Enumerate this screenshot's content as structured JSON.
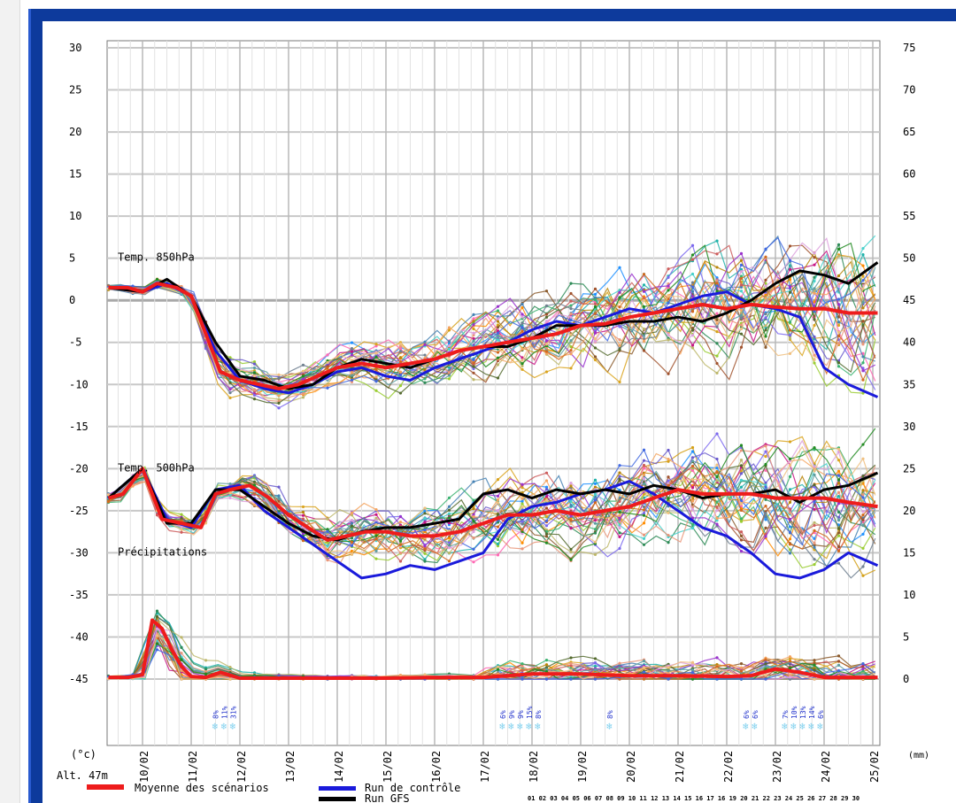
{
  "labels": {
    "temp850": "Temp. 850hPa",
    "temp500": "Temp. 500hPa",
    "precip": "Précipitations",
    "unit_left": "(°c)",
    "unit_right": "(mm)",
    "altitude": "Alt. 47m"
  },
  "legend": {
    "mean": "Moyenne des scénarios",
    "control": "Run de contrôle",
    "gfs": "Run GFS",
    "days_strip": "01 02 03 04 05 06 07 08 09 10 11 12 13 14 15 16 17 16 19 20 21 22 23 24 25 26 27 28 29 30"
  },
  "colors": {
    "mean": "#ee1c1c",
    "control": "#1a1adb",
    "gfs": "#000000",
    "frame": "#0d3a9c",
    "snow": "#7fd0ee"
  },
  "snow_markers": [
    {
      "day": 11.5,
      "pcts": [
        "8%",
        "11%",
        "31%"
      ]
    },
    {
      "day": 17.4,
      "pcts": [
        "6%",
        "9%",
        "9%",
        "15%",
        "8%"
      ]
    },
    {
      "day": 19.6,
      "pcts": [
        "8%"
      ]
    },
    {
      "day": 22.4,
      "pcts": [
        "6%",
        "6%"
      ]
    },
    {
      "day": 23.2,
      "pcts": [
        "7%",
        "10%",
        "13%",
        "14%",
        "6%"
      ]
    }
  ],
  "chart_data": {
    "type": "line",
    "xlabel": "",
    "x_ticks": [
      "10/02",
      "11/02",
      "12/02",
      "13/02",
      "14/02",
      "15/02",
      "16/02",
      "17/02",
      "18/02",
      "19/02",
      "20/02",
      "21/02",
      "22/02",
      "23/02",
      "24/02",
      "25/02"
    ],
    "xlim": [
      9.3,
      25.15
    ],
    "y_left": {
      "label": "(°c)",
      "lim": [
        -45,
        30
      ],
      "ticks": [
        30,
        25,
        20,
        15,
        10,
        5,
        0,
        -5,
        -10,
        -15,
        -20,
        -25,
        -30,
        -35,
        -40,
        -45
      ]
    },
    "y_right": {
      "label": "(mm)",
      "lim": [
        0,
        75
      ],
      "ticks": [
        75,
        70,
        65,
        60,
        55,
        50,
        45,
        40,
        35,
        30,
        25,
        20,
        15,
        10,
        5,
        0
      ]
    },
    "grid": true,
    "series": [
      {
        "name": "Moyenne des scénarios",
        "axis": "left",
        "group": "temp850",
        "x": [
          9.3,
          9.7,
          10.0,
          10.3,
          10.7,
          11.0,
          11.3,
          11.6,
          12.0,
          12.4,
          12.8,
          13.2,
          13.6,
          14.0,
          14.5,
          15.0,
          15.5,
          16.0,
          16.5,
          17.0,
          17.5,
          18.0,
          18.5,
          19.0,
          19.5,
          20.0,
          20.5,
          21.0,
          21.5,
          22.0,
          22.5,
          23.0,
          23.5,
          24.0,
          24.5,
          25.1
        ],
        "y": [
          1.5,
          1.5,
          1.0,
          2.0,
          1.5,
          0.5,
          -4.0,
          -8.5,
          -9.5,
          -10.0,
          -10.5,
          -10.0,
          -9.0,
          -8.0,
          -7.5,
          -8.0,
          -7.5,
          -7.0,
          -6.0,
          -5.5,
          -5.0,
          -4.5,
          -4.0,
          -3.0,
          -2.8,
          -2.0,
          -1.5,
          -1.0,
          -0.5,
          -1.0,
          -0.5,
          -0.8,
          -1.0,
          -1.0,
          -1.5,
          -1.5
        ]
      },
      {
        "name": "Moyenne des scénarios",
        "axis": "left",
        "group": "temp500",
        "x": [
          9.3,
          9.6,
          10.0,
          10.4,
          10.8,
          11.2,
          11.5,
          11.8,
          12.2,
          12.6,
          13.0,
          13.4,
          13.8,
          14.2,
          14.6,
          15.0,
          15.5,
          16.0,
          16.5,
          17.0,
          17.5,
          18.0,
          18.5,
          19.0,
          19.5,
          20.0,
          20.5,
          21.0,
          21.5,
          22.0,
          22.5,
          23.0,
          23.5,
          24.0,
          24.5,
          25.1
        ],
        "y": [
          -23.5,
          -23.0,
          -20.0,
          -26.0,
          -26.5,
          -27.0,
          -23.0,
          -22.5,
          -22.0,
          -23.5,
          -25.5,
          -27.0,
          -28.5,
          -28.0,
          -27.5,
          -27.5,
          -28.0,
          -28.0,
          -27.5,
          -26.5,
          -25.5,
          -25.5,
          -25.0,
          -25.5,
          -25.0,
          -24.5,
          -23.5,
          -22.5,
          -23.0,
          -23.0,
          -23.0,
          -23.5,
          -23.5,
          -23.5,
          -24.0,
          -24.5
        ]
      },
      {
        "name": "Moyenne des scénarios",
        "axis": "right",
        "group": "precip",
        "x": [
          9.3,
          9.7,
          10.0,
          10.2,
          10.4,
          10.6,
          10.8,
          11.0,
          11.3,
          11.6,
          12.0,
          13.0,
          14.0,
          15.0,
          16.0,
          17.0,
          18.0,
          19.0,
          20.0,
          21.0,
          22.0,
          22.5,
          23.0,
          23.5,
          24.0,
          25.1
        ],
        "y": [
          0.2,
          0.2,
          0.5,
          7.0,
          6.0,
          3.5,
          1.5,
          0.3,
          0.2,
          0.8,
          0.1,
          0.1,
          0.1,
          0.1,
          0.2,
          0.2,
          0.6,
          0.6,
          0.4,
          0.4,
          0.3,
          0.4,
          1.2,
          0.8,
          0.2,
          0.2
        ]
      },
      {
        "name": "Run de contrôle",
        "axis": "left",
        "group": "temp850",
        "x": [
          9.3,
          10.0,
          10.5,
          11.0,
          11.5,
          12.0,
          12.5,
          13.0,
          13.5,
          14.0,
          14.5,
          15.0,
          15.5,
          16.0,
          16.5,
          17.0,
          17.5,
          18.0,
          18.5,
          19.0,
          19.5,
          20.0,
          20.5,
          21.0,
          21.5,
          22.0,
          22.5,
          23.0,
          23.5,
          24.0,
          24.5,
          25.1
        ],
        "y": [
          1.5,
          1.0,
          2.0,
          0.5,
          -6.0,
          -9.5,
          -10.5,
          -11.0,
          -10.0,
          -8.5,
          -8.0,
          -9.0,
          -9.5,
          -8.0,
          -7.0,
          -6.0,
          -5.0,
          -3.5,
          -2.5,
          -3.0,
          -2.0,
          -1.0,
          -1.5,
          -0.5,
          0.5,
          1.0,
          -0.5,
          -1.0,
          -2.0,
          -8.0,
          -10.0,
          -11.5
        ]
      },
      {
        "name": "Run de contrôle",
        "axis": "left",
        "group": "temp500",
        "x": [
          9.3,
          10.0,
          10.5,
          11.0,
          11.5,
          12.0,
          12.5,
          13.0,
          13.5,
          14.0,
          14.5,
          15.0,
          15.5,
          16.0,
          16.5,
          17.0,
          17.5,
          18.0,
          18.5,
          19.0,
          19.5,
          20.0,
          20.5,
          21.0,
          21.5,
          22.0,
          22.5,
          23.0,
          23.5,
          24.0,
          24.5,
          25.1
        ],
        "y": [
          -23.5,
          -20.0,
          -26.0,
          -27.0,
          -22.5,
          -22.0,
          -25.0,
          -27.0,
          -29.0,
          -31.0,
          -33.0,
          -32.5,
          -31.5,
          -32.0,
          -31.0,
          -30.0,
          -26.0,
          -24.5,
          -24.0,
          -23.0,
          -22.5,
          -21.5,
          -23.0,
          -25.0,
          -27.0,
          -28.0,
          -30.0,
          -32.5,
          -33.0,
          -32.0,
          -30.0,
          -31.5
        ]
      },
      {
        "name": "Run GFS",
        "axis": "left",
        "group": "temp850",
        "x": [
          9.3,
          10.0,
          10.5,
          11.0,
          11.5,
          12.0,
          12.5,
          13.0,
          13.5,
          14.0,
          14.5,
          15.0,
          15.5,
          16.0,
          16.5,
          17.0,
          17.5,
          18.0,
          18.5,
          19.0,
          19.5,
          20.0,
          20.5,
          21.0,
          21.5,
          22.0,
          22.5,
          23.0,
          23.5,
          24.0,
          24.5,
          25.1
        ],
        "y": [
          1.5,
          1.0,
          2.5,
          0.5,
          -5.0,
          -9.0,
          -9.5,
          -10.5,
          -10.0,
          -8.0,
          -7.0,
          -7.5,
          -8.0,
          -7.0,
          -6.0,
          -5.5,
          -5.5,
          -4.5,
          -3.0,
          -3.0,
          -3.0,
          -2.5,
          -2.5,
          -2.0,
          -2.5,
          -1.5,
          0.0,
          2.0,
          3.5,
          3.0,
          2.0,
          4.5
        ]
      },
      {
        "name": "Run GFS",
        "axis": "left",
        "group": "temp500",
        "x": [
          9.3,
          10.0,
          10.5,
          11.0,
          11.5,
          12.0,
          12.5,
          13.0,
          13.5,
          14.0,
          14.5,
          15.0,
          15.5,
          16.0,
          16.5,
          17.0,
          17.5,
          18.0,
          18.5,
          19.0,
          19.5,
          20.0,
          20.5,
          21.0,
          21.5,
          22.0,
          22.5,
          23.0,
          23.5,
          24.0,
          24.5,
          25.1
        ],
        "y": [
          -23.5,
          -20.0,
          -26.5,
          -26.5,
          -22.5,
          -22.5,
          -24.5,
          -26.5,
          -28.0,
          -28.5,
          -27.5,
          -27.0,
          -27.0,
          -26.5,
          -26.0,
          -23.0,
          -22.5,
          -23.5,
          -22.5,
          -23.0,
          -22.5,
          -23.0,
          -22.0,
          -22.5,
          -23.5,
          -23.0,
          -23.0,
          -22.5,
          -24.0,
          -22.5,
          -22.0,
          -20.5
        ]
      }
    ]
  }
}
